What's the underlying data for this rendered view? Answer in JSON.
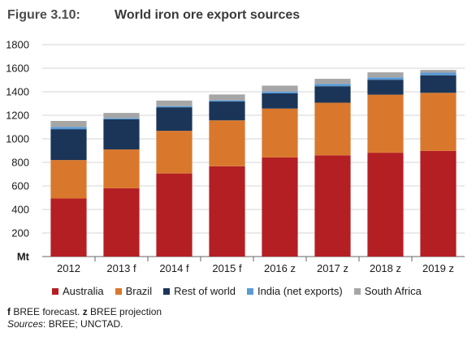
{
  "figure": {
    "number": "Figure 3.10:",
    "title": "World iron ore export sources"
  },
  "notes": {
    "forecast_marker": "f",
    "forecast_text": " BREE forecast. ",
    "projection_marker": "z",
    "projection_text": " BREE projection",
    "sources_label": "Sources",
    "sources_text": ": BREE; UNCTAD."
  },
  "chart_data": {
    "type": "bar",
    "stacked": true,
    "categories": [
      "2012",
      "2013 f",
      "2014 f",
      "2015 f",
      "2016 z",
      "2017 z",
      "2018 z",
      "2019 z"
    ],
    "series": [
      {
        "name": "Australia",
        "color": "#b41f24",
        "values": [
          493,
          580,
          706,
          767,
          842,
          860,
          882,
          897
        ]
      },
      {
        "name": "Brazil",
        "color": "#d9782d",
        "values": [
          327,
          330,
          362,
          390,
          415,
          447,
          493,
          494
        ]
      },
      {
        "name": "Rest of world",
        "color": "#1b3558",
        "values": [
          262,
          257,
          200,
          160,
          130,
          140,
          127,
          149
        ]
      },
      {
        "name": "India (net exports)",
        "color": "#5b9bd5",
        "values": [
          20,
          10,
          10,
          10,
          15,
          20,
          20,
          22
        ]
      },
      {
        "name": "South Africa",
        "color": "#a6a6a6",
        "values": [
          50,
          43,
          47,
          50,
          50,
          43,
          43,
          23
        ]
      }
    ],
    "y_ticks": [
      "1800",
      "1600",
      "1400",
      "1200",
      "1000",
      "800",
      "600",
      "400",
      "200",
      "Mt"
    ],
    "ylim": [
      0,
      1800
    ],
    "grid": true,
    "legend_position": "bottom"
  }
}
